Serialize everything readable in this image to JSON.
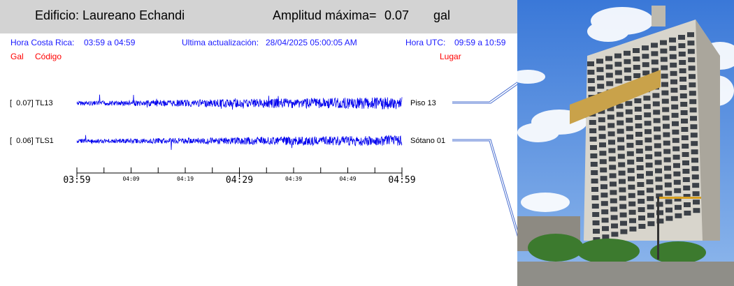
{
  "header": {
    "building_label": "Edificio: Laureano Echandi",
    "amplitude_label": "Amplitud máxima=",
    "amplitude_value": "0.07",
    "amplitude_unit": "gal"
  },
  "info": {
    "local_time_label": "Hora Costa Rica:",
    "local_time_value": "03:59 a 04:59",
    "update_label": "Ultima actualización:",
    "update_value": "28/04/2025 05:00:05 AM",
    "utc_label": "Hora UTC:",
    "utc_value": "09:59 a 10:59"
  },
  "columns": {
    "gal": "Gal",
    "code": "Código",
    "place": "Lugar"
  },
  "colors": {
    "trace": "#0000ee",
    "header_bg": "#d3d3d3",
    "info_text": "#1a1aff",
    "column_text": "#ff0000"
  },
  "chart_data": {
    "type": "line",
    "x_ticks_major": [
      "03:59",
      "04:29",
      "04:59"
    ],
    "x_ticks_minor": [
      "04:09",
      "04:19",
      "04:39",
      "04:49"
    ],
    "series": [
      {
        "name": "TL13",
        "gal_text": "[  0.07] TL13",
        "place": "Piso 13",
        "max_amplitude": 0.07
      },
      {
        "name": "TLS1",
        "gal_text": "[  0.06] TLS1",
        "place": "Sótano 01",
        "max_amplitude": 0.06
      }
    ]
  },
  "photo": {
    "icon": "building-photo"
  }
}
